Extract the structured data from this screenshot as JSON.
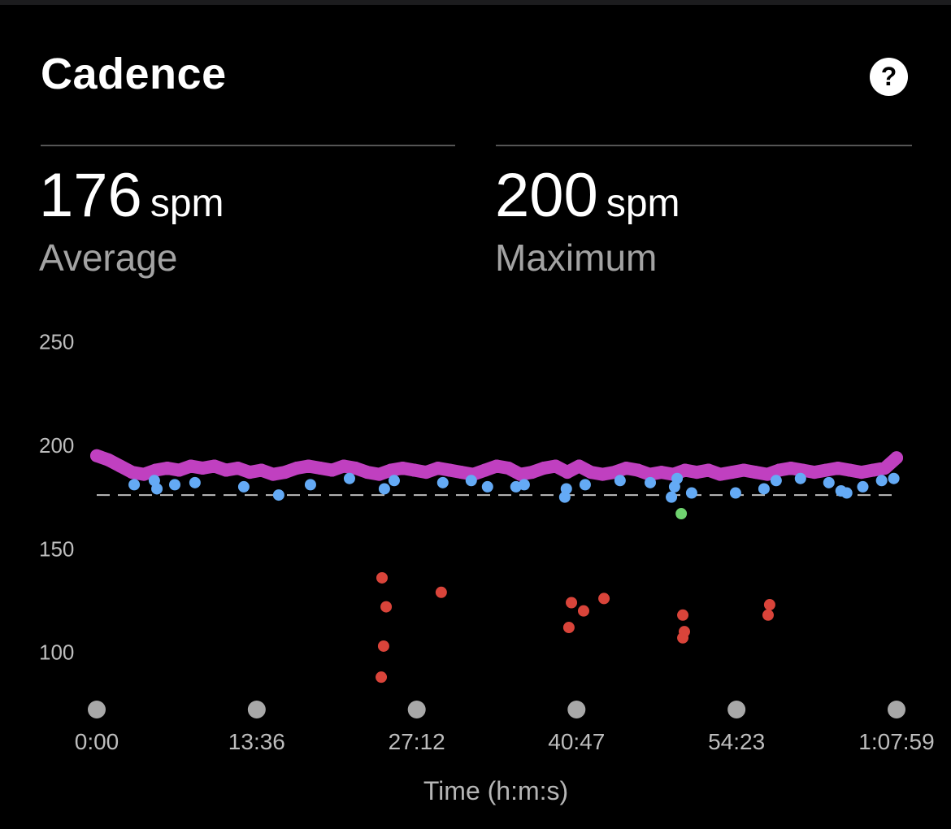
{
  "header": {
    "title": "Cadence",
    "help_icon": "question-circle-icon"
  },
  "stats": [
    {
      "value": "176",
      "unit": "spm",
      "label": "Average"
    },
    {
      "value": "200",
      "unit": "spm",
      "label": "Maximum"
    }
  ],
  "chart_data": {
    "type": "scatter",
    "xlabel": "Time (h:m:s)",
    "ylabel": "",
    "x_ticks": [
      "0:00",
      "13:36",
      "27:12",
      "40:47",
      "54:23",
      "1:07:59"
    ],
    "y_ticks": [
      "250",
      "200",
      "150",
      "100"
    ],
    "xlim": [
      "0:00",
      "1:07:59"
    ],
    "ylim": [
      80,
      250
    ],
    "grid": false,
    "average_line": 176,
    "colors": {
      "purple": "#c040c0",
      "blue": "#64aaf5",
      "green": "#6fd36f",
      "red": "#d9443a",
      "average_line": "#bbbbbb",
      "axis_dots": "#a8a8a8"
    },
    "series": [
      {
        "color": "purple",
        "points": [
          [
            "0:00",
            195
          ],
          [
            "1:00",
            193
          ],
          [
            "2:00",
            190
          ],
          [
            "3:00",
            187
          ],
          [
            "4:00",
            186
          ],
          [
            "5:00",
            188
          ],
          [
            "6:00",
            189
          ],
          [
            "7:00",
            188
          ],
          [
            "8:00",
            190
          ],
          [
            "9:00",
            189
          ],
          [
            "10:00",
            190
          ],
          [
            "11:00",
            188
          ],
          [
            "12:00",
            189
          ],
          [
            "13:00",
            187
          ],
          [
            "14:00",
            188
          ],
          [
            "15:00",
            186
          ],
          [
            "16:00",
            187
          ],
          [
            "17:00",
            189
          ],
          [
            "18:00",
            190
          ],
          [
            "19:00",
            189
          ],
          [
            "20:00",
            188
          ],
          [
            "21:00",
            190
          ],
          [
            "22:00",
            189
          ],
          [
            "23:00",
            187
          ],
          [
            "24:00",
            186
          ],
          [
            "25:00",
            188
          ],
          [
            "26:00",
            189
          ],
          [
            "27:00",
            188
          ],
          [
            "28:00",
            187
          ],
          [
            "29:00",
            189
          ],
          [
            "30:00",
            188
          ],
          [
            "31:00",
            187
          ],
          [
            "32:00",
            186
          ],
          [
            "33:00",
            188
          ],
          [
            "34:00",
            190
          ],
          [
            "35:00",
            189
          ],
          [
            "36:00",
            186
          ],
          [
            "37:00",
            187
          ],
          [
            "38:00",
            189
          ],
          [
            "39:00",
            190
          ],
          [
            "40:00",
            187
          ],
          [
            "41:00",
            190
          ],
          [
            "42:00",
            187
          ],
          [
            "43:00",
            186
          ],
          [
            "44:00",
            187
          ],
          [
            "45:00",
            189
          ],
          [
            "46:00",
            188
          ],
          [
            "47:00",
            186
          ],
          [
            "48:00",
            187
          ],
          [
            "49:00",
            186
          ],
          [
            "50:00",
            188
          ],
          [
            "51:00",
            187
          ],
          [
            "52:00",
            188
          ],
          [
            "53:00",
            186
          ],
          [
            "54:00",
            187
          ],
          [
            "55:00",
            188
          ],
          [
            "56:00",
            187
          ],
          [
            "57:00",
            186
          ],
          [
            "58:00",
            188
          ],
          [
            "59:00",
            189
          ],
          [
            "1:00:00",
            188
          ],
          [
            "1:01:00",
            187
          ],
          [
            "1:02:00",
            188
          ],
          [
            "1:03:00",
            189
          ],
          [
            "1:04:00",
            188
          ],
          [
            "1:05:00",
            187
          ],
          [
            "1:06:00",
            188
          ],
          [
            "1:07:00",
            189
          ],
          [
            "1:07:59",
            194
          ]
        ]
      },
      {
        "color": "blue",
        "points": [
          [
            "3:11",
            181
          ],
          [
            "4:54",
            183
          ],
          [
            "5:07",
            179
          ],
          [
            "6:38",
            181
          ],
          [
            "8:21",
            182
          ],
          [
            "12:30",
            180
          ],
          [
            "15:28",
            176
          ],
          [
            "18:10",
            181
          ],
          [
            "21:29",
            184
          ],
          [
            "24:27",
            179
          ],
          [
            "25:17",
            183
          ],
          [
            "29:25",
            182
          ],
          [
            "31:50",
            183
          ],
          [
            "33:13",
            180
          ],
          [
            "35:38",
            180
          ],
          [
            "36:20",
            181
          ],
          [
            "39:47",
            175
          ],
          [
            "39:55",
            179
          ],
          [
            "41:31",
            181
          ],
          [
            "44:29",
            183
          ],
          [
            "47:03",
            182
          ],
          [
            "48:51",
            175
          ],
          [
            "49:07",
            180
          ],
          [
            "49:20",
            184
          ],
          [
            "50:34",
            177
          ],
          [
            "54:18",
            177
          ],
          [
            "56:43",
            179
          ],
          [
            "57:45",
            183
          ],
          [
            "59:49",
            184
          ],
          [
            "1:02:14",
            182
          ],
          [
            "1:03:16",
            178
          ],
          [
            "1:03:45",
            177
          ],
          [
            "1:05:07",
            180
          ],
          [
            "1:06:43",
            183
          ],
          [
            "1:07:45",
            184
          ]
        ]
      },
      {
        "color": "green",
        "points": [
          [
            "49:41",
            167
          ]
        ]
      },
      {
        "color": "red",
        "points": [
          [
            "24:15",
            136
          ],
          [
            "24:36",
            122
          ],
          [
            "24:23",
            103
          ],
          [
            "24:11",
            88
          ],
          [
            "29:17",
            129
          ],
          [
            "40:08",
            112
          ],
          [
            "40:21",
            124
          ],
          [
            "41:23",
            120
          ],
          [
            "43:07",
            126
          ],
          [
            "49:49",
            118
          ],
          [
            "49:57",
            110
          ],
          [
            "49:49",
            107
          ],
          [
            "57:12",
            123
          ],
          [
            "57:04",
            118
          ]
        ]
      }
    ]
  }
}
